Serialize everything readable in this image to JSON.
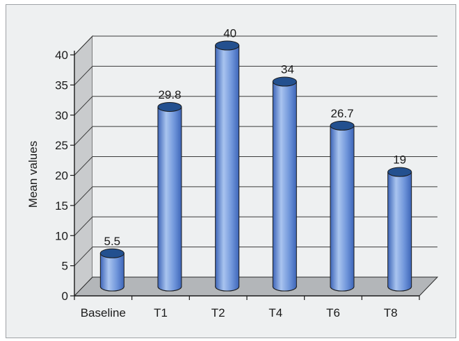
{
  "chart_data": {
    "type": "bar",
    "style": "3d-cylinder",
    "categories": [
      "Baseline",
      "T1",
      "T2",
      "T4",
      "T6",
      "T8"
    ],
    "values": [
      5.5,
      29.8,
      40,
      34,
      26.7,
      19
    ],
    "data_labels": [
      "5.5",
      "29.8",
      "40",
      "34",
      "26.7",
      "19"
    ],
    "ylabel": "Mean values",
    "xlabel": "",
    "ylim": [
      0,
      40
    ],
    "yticks": [
      "0",
      "5",
      "10",
      "15",
      "20",
      "25",
      "30",
      "35",
      "40"
    ],
    "grid": true,
    "legend": "none",
    "colors": {
      "bar_light": "#a9c4ef",
      "bar_mid": "#6f95da",
      "bar_dark": "#3d65b8",
      "bar_top": "#23508f",
      "wall": "#c9cbcd",
      "floor": "#b3b6b9",
      "background": "#eef0f1"
    }
  }
}
